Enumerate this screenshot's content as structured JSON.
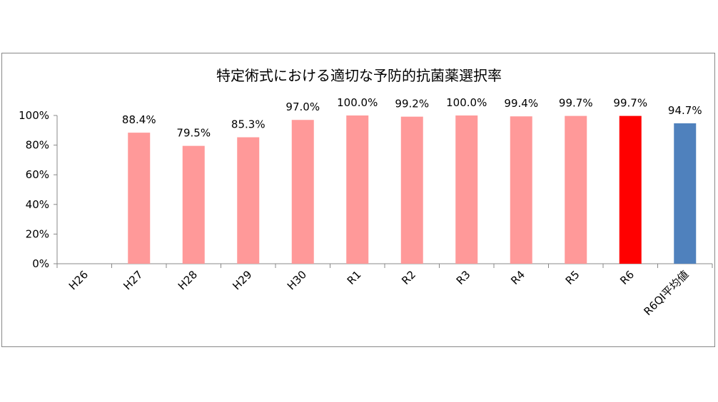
{
  "chart_data": {
    "type": "bar",
    "title": "特定術式における適切な予防的抗菌薬選択率",
    "categories": [
      "H26",
      "H27",
      "H28",
      "H29",
      "H30",
      "R1",
      "R2",
      "R3",
      "R4",
      "R5",
      "R6",
      "R6QI平均値"
    ],
    "values": [
      null,
      88.4,
      79.5,
      85.3,
      97.0,
      100.0,
      99.2,
      100.0,
      99.4,
      99.7,
      99.7,
      94.7
    ],
    "data_labels": [
      "",
      "88.4%",
      "79.5%",
      "85.3%",
      "97.0%",
      "100.0%",
      "99.2%",
      "100.0%",
      "99.4%",
      "99.7%",
      "99.7%",
      "94.7%"
    ],
    "bar_colors": [
      "#ff9999",
      "#ff9999",
      "#ff9999",
      "#ff9999",
      "#ff9999",
      "#ff9999",
      "#ff9999",
      "#ff9999",
      "#ff9999",
      "#ff9999",
      "#ff0000",
      "#4f81bd"
    ],
    "yticks": [
      "0%",
      "20%",
      "40%",
      "60%",
      "80%",
      "100%"
    ],
    "ylim": [
      0,
      100
    ],
    "xlabel": "",
    "ylabel": "",
    "grid": false,
    "legend": "none"
  }
}
